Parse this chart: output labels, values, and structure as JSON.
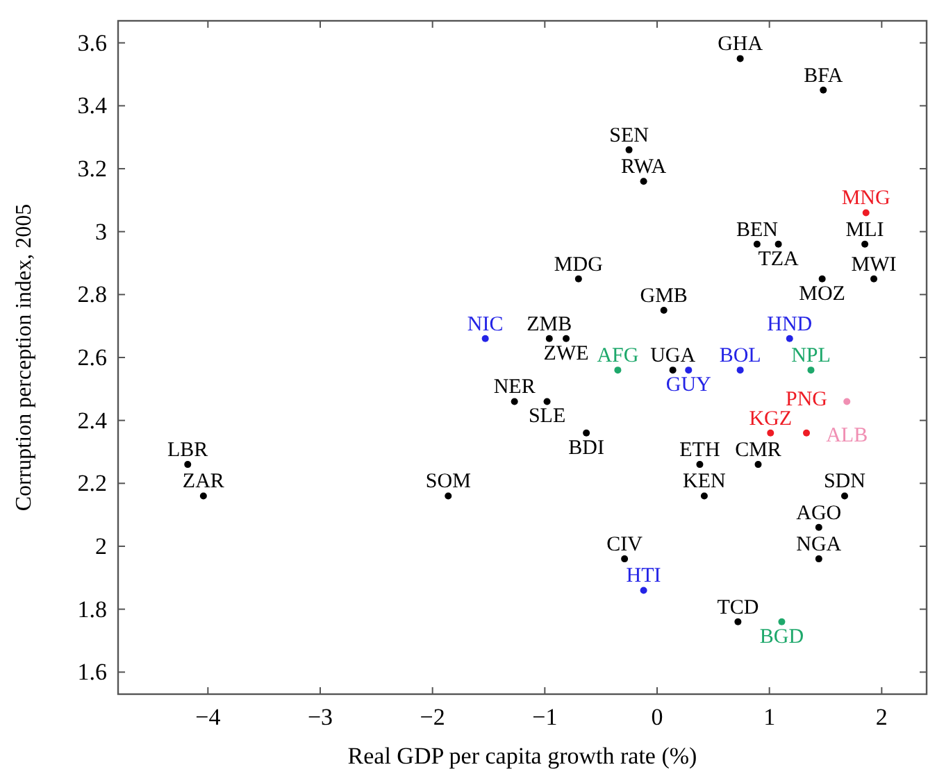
{
  "chart_data": {
    "type": "scatter",
    "xlabel": "Real GDP per capita growth rate (%)",
    "ylabel": "Corruption perception index, 2005",
    "xlim": [
      -4.8,
      2.4
    ],
    "ylim": [
      1.53,
      3.67
    ],
    "xticks": [
      {
        "value": -4,
        "label": "−4"
      },
      {
        "value": -3,
        "label": "−3"
      },
      {
        "value": -2,
        "label": "−2"
      },
      {
        "value": -1,
        "label": "−1"
      },
      0,
      1,
      2
    ],
    "yticks": [
      {
        "value": 1.6,
        "label": "1.6"
      },
      {
        "value": 1.8,
        "label": "1.8"
      },
      2,
      {
        "value": 2.2,
        "label": "2.2"
      },
      {
        "value": 2.4,
        "label": "2.4"
      },
      {
        "value": 2.6,
        "label": "2.6"
      },
      {
        "value": 2.8,
        "label": "2.8"
      },
      3,
      {
        "value": 3.2,
        "label": "3.2"
      },
      {
        "value": 3.4,
        "label": "3.4"
      },
      {
        "value": 3.6,
        "label": "3.6"
      }
    ],
    "grid": false,
    "marker": "circle",
    "series": [
      {
        "color": "#000000",
        "x": [
          0.74,
          1.48,
          -0.25,
          -0.12,
          0.89,
          1.08,
          1.85,
          1.47,
          1.93,
          -0.7,
          0.06,
          -0.96,
          -0.81,
          0.14,
          -1.27,
          -0.98,
          -0.63,
          -4.18,
          -4.04,
          -1.86,
          0.38,
          0.9,
          0.42,
          1.67,
          1.44,
          1.44,
          -0.29,
          0.72
        ],
        "values": [
          3.55,
          3.45,
          3.26,
          3.16,
          2.96,
          2.96,
          2.96,
          2.85,
          2.85,
          2.85,
          2.75,
          2.66,
          2.66,
          2.56,
          2.46,
          2.46,
          2.36,
          2.26,
          2.16,
          2.16,
          2.26,
          2.26,
          2.16,
          2.16,
          2.06,
          1.96,
          1.96,
          1.76
        ],
        "value_labels": [
          "GHA",
          "BFA",
          "SEN",
          "RWA",
          "BEN",
          "TZA",
          "MLI",
          "MOZ",
          "MWI",
          "MDG",
          "GMB",
          "ZMB",
          "ZWE",
          "UGA",
          "NER",
          "SLE",
          "BDI",
          "LBR",
          "ZAR",
          "SOM",
          "ETH",
          "CMR",
          "KEN",
          "SDN",
          "AGO",
          "NGA",
          "CIV",
          "TCD"
        ]
      },
      {
        "color": "#ee1c25",
        "x": [
          1.86,
          1.01,
          1.33
        ],
        "values": [
          3.06,
          2.36,
          2.36
        ],
        "value_labels": [
          "MNG",
          "KGZ",
          "PNG"
        ]
      },
      {
        "color": "#2424e6",
        "x": [
          -1.53,
          1.18,
          0.28,
          0.74,
          -0.12
        ],
        "values": [
          2.66,
          2.66,
          2.56,
          2.56,
          1.86
        ],
        "value_labels": [
          "NIC",
          "HND",
          "GUY",
          "BOL",
          "HTI"
        ]
      },
      {
        "color": "#1ea86b",
        "x": [
          -0.35,
          1.37,
          1.11
        ],
        "values": [
          2.56,
          2.56,
          1.76
        ],
        "value_labels": [
          "AFG",
          "NPL",
          "BGD"
        ]
      },
      {
        "color": "#f08fb3",
        "x": [
          1.69
        ],
        "values": [
          2.46
        ],
        "value_labels": [
          "ALB"
        ]
      }
    ]
  }
}
